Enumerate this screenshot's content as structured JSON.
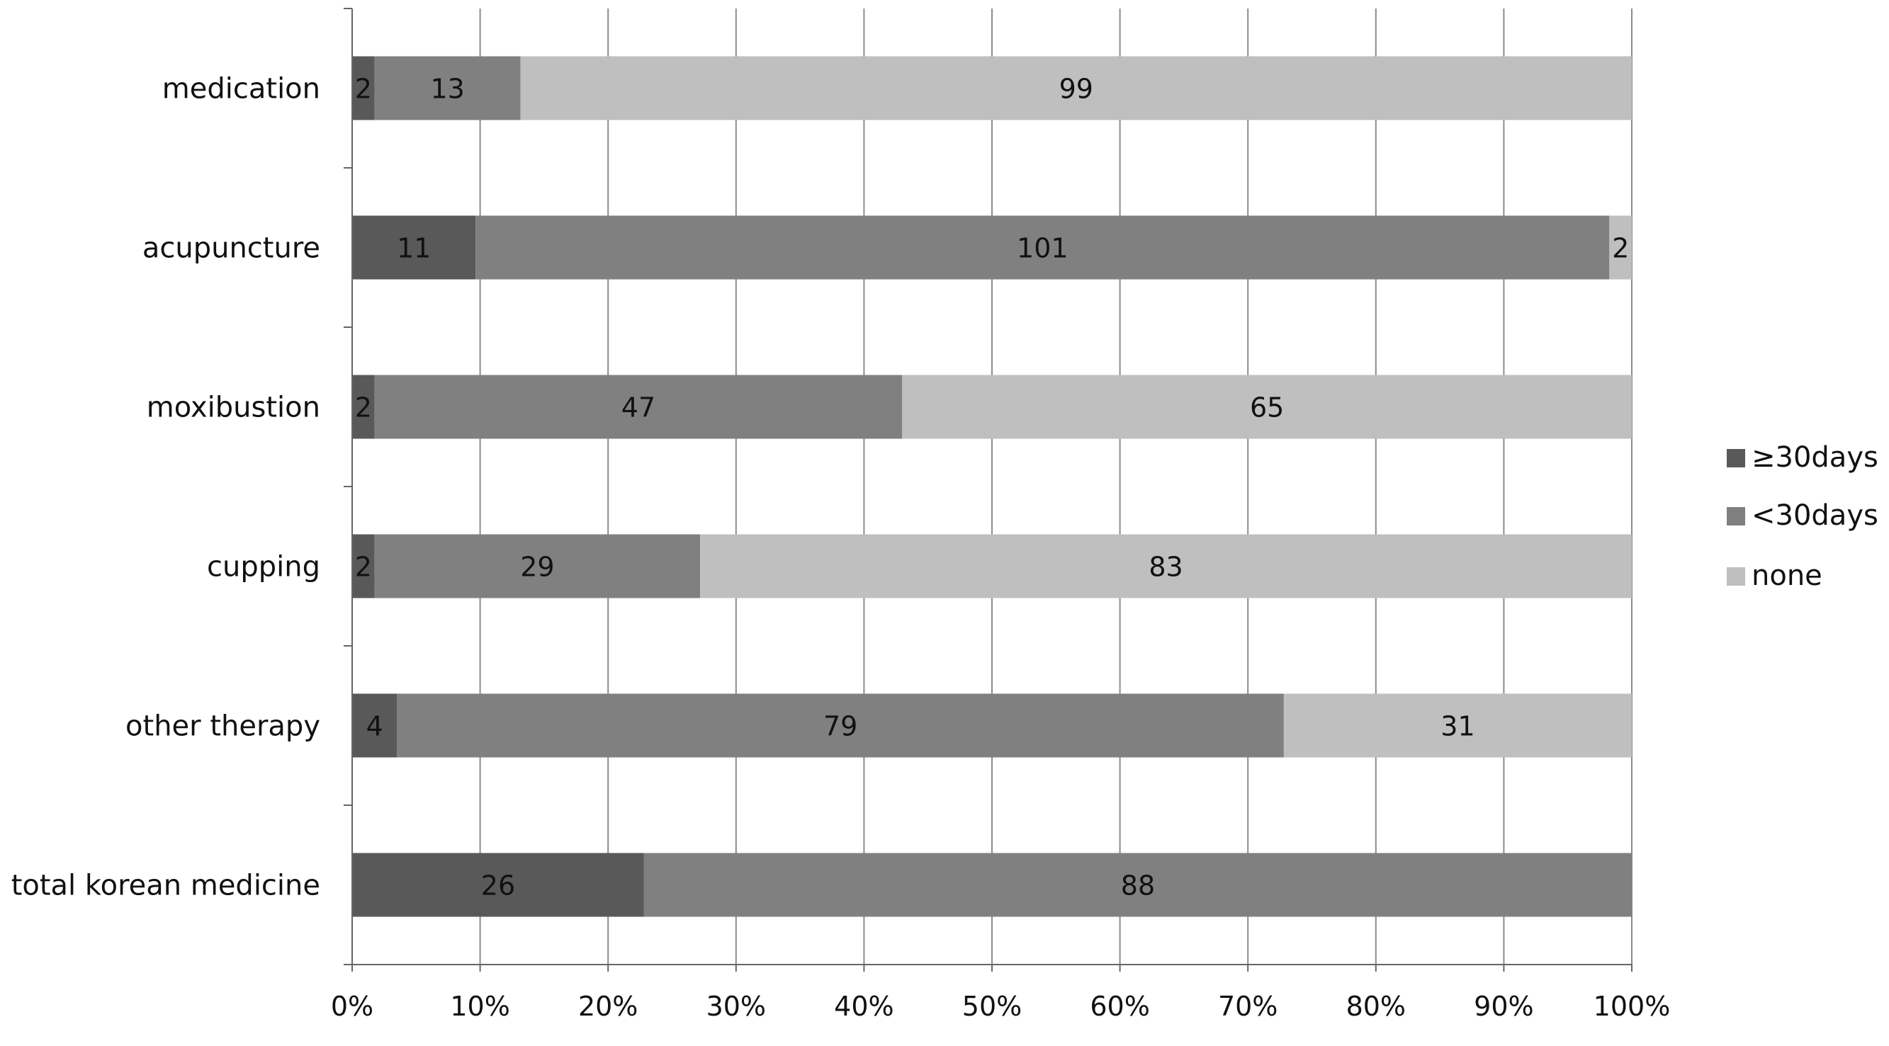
{
  "chart_data": {
    "type": "bar",
    "orientation": "horizontal",
    "stacked": "percent",
    "categories": [
      "medication",
      "acupuncture",
      "moxibustion",
      "cupping",
      "other therapy",
      "total korean medicine"
    ],
    "series": [
      {
        "name": "≥30days",
        "color": "#595959",
        "values": [
          2,
          11,
          2,
          2,
          4,
          26
        ]
      },
      {
        "name": "<30days",
        "color": "#808080",
        "values": [
          13,
          101,
          47,
          29,
          79,
          88
        ]
      },
      {
        "name": "none",
        "color": "#bfbfbf",
        "values": [
          99,
          2,
          65,
          83,
          31,
          0
        ]
      }
    ],
    "x_ticks": [
      "0%",
      "10%",
      "20%",
      "30%",
      "40%",
      "50%",
      "60%",
      "70%",
      "80%",
      "90%",
      "100%"
    ],
    "xlim": [
      0,
      100
    ],
    "grid": true,
    "legend_position": "right"
  }
}
